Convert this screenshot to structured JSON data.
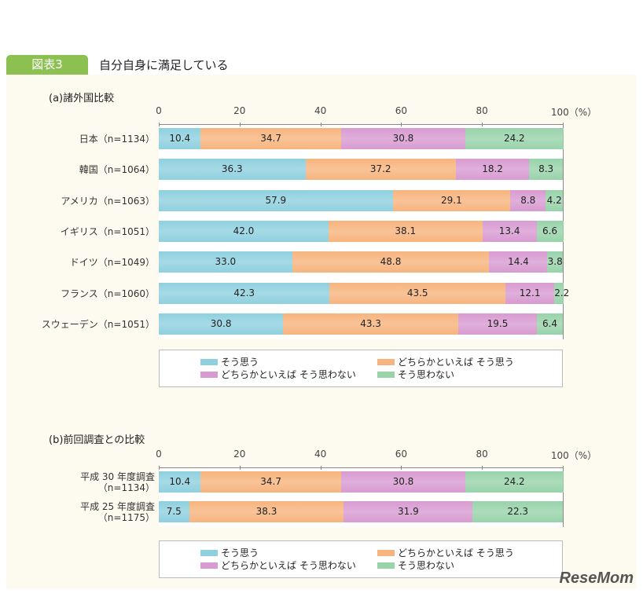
{
  "figure_label": "図表3",
  "title": "自分自身に満足している",
  "colors": {
    "そう思う": "#8fd0df",
    "どちらかといえば そう思う": "#f7b47e",
    "どちらかといえば そう思わない": "#d89bd1",
    "そう思わない": "#98d3aa"
  },
  "logo": "ReseMom",
  "chart_data": [
    {
      "type": "bar",
      "orientation": "horizontal",
      "stacked": true,
      "title": "(a)諸外国比較",
      "xlim": [
        0,
        100
      ],
      "xticks": [
        "0",
        "20",
        "40",
        "60",
        "80",
        "100（%）"
      ],
      "categories": [
        "日本（n=1134）",
        "韓国（n=1064）",
        "アメリカ（n=1063）",
        "イギリス（n=1051）",
        "ドイツ（n=1049）",
        "フランス（n=1060）",
        "スウェーデン（n=1051）"
      ],
      "series": [
        {
          "name": "そう思う",
          "values": [
            10.4,
            36.3,
            57.9,
            42.0,
            33.0,
            42.3,
            30.8
          ]
        },
        {
          "name": "どちらかといえば そう思う",
          "values": [
            34.7,
            37.2,
            29.1,
            38.1,
            48.8,
            43.5,
            43.3
          ]
        },
        {
          "name": "どちらかといえば そう思わない",
          "values": [
            30.8,
            18.2,
            8.8,
            13.4,
            14.4,
            12.1,
            19.5
          ]
        },
        {
          "name": "そう思わない",
          "values": [
            24.2,
            8.3,
            4.2,
            6.6,
            3.8,
            2.2,
            6.4
          ]
        }
      ],
      "legend": "bottom"
    },
    {
      "type": "bar",
      "orientation": "horizontal",
      "stacked": true,
      "title": "(b)前回調査との比較",
      "xlim": [
        0,
        100
      ],
      "xticks": [
        "0",
        "20",
        "40",
        "60",
        "80",
        "100（%）"
      ],
      "categories": [
        "平成 30 年度調査\n（n=1134）",
        "平成 25 年度調査\n（n=1175）"
      ],
      "series": [
        {
          "name": "そう思う",
          "values": [
            10.4,
            7.5
          ]
        },
        {
          "name": "どちらかといえば そう思う",
          "values": [
            34.7,
            38.3
          ]
        },
        {
          "name": "どちらかといえば そう思わない",
          "values": [
            30.8,
            31.9
          ]
        },
        {
          "name": "そう思わない",
          "values": [
            24.2,
            22.3
          ]
        }
      ],
      "legend": "bottom"
    }
  ]
}
